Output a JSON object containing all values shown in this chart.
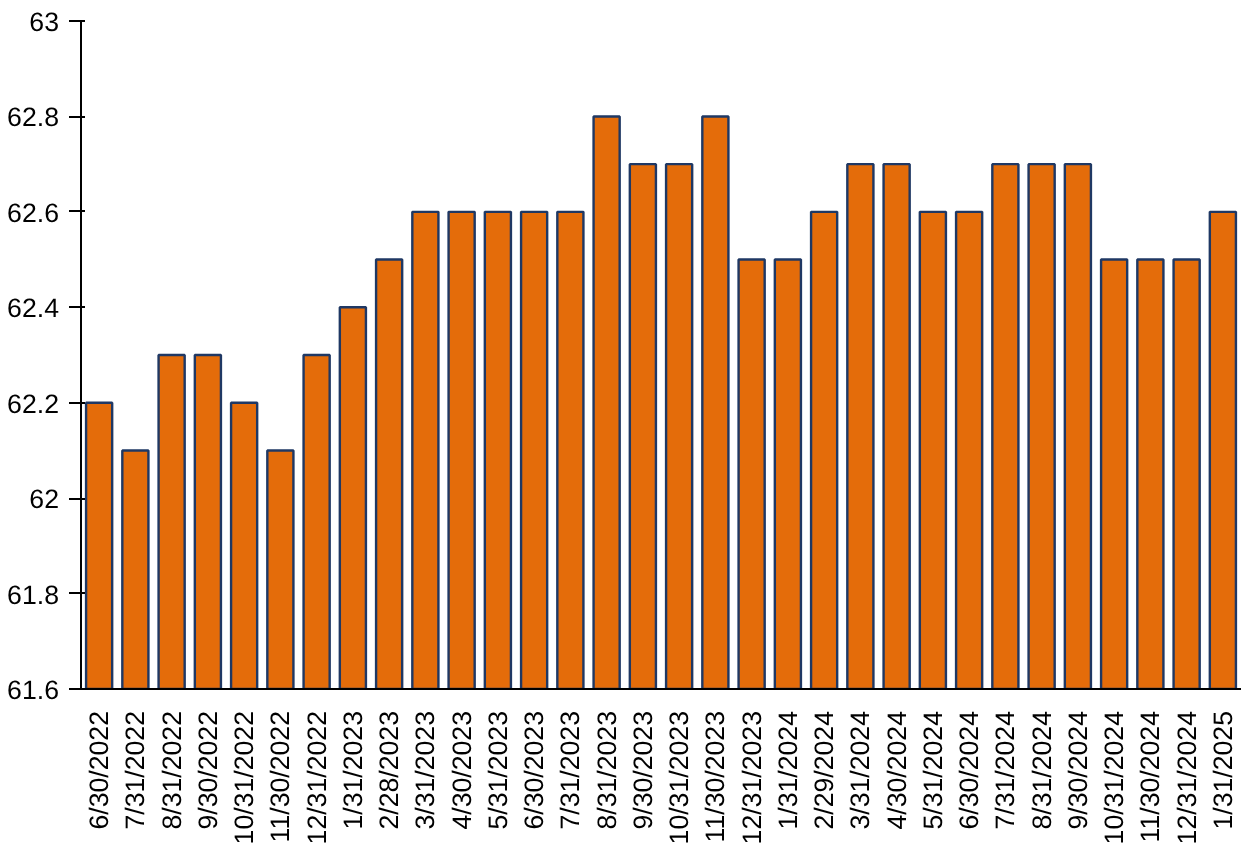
{
  "chart_data": {
    "type": "bar",
    "categories": [
      "6/30/2022",
      "7/31/2022",
      "8/31/2022",
      "9/30/2022",
      "10/31/2022",
      "11/30/2022",
      "12/31/2022",
      "1/31/2023",
      "2/28/2023",
      "3/31/2023",
      "4/30/2023",
      "5/31/2023",
      "6/30/2023",
      "7/31/2023",
      "8/31/2023",
      "9/30/2023",
      "10/31/2023",
      "11/30/2023",
      "12/31/2023",
      "1/31/2024",
      "2/29/2024",
      "3/31/2024",
      "4/30/2024",
      "5/31/2024",
      "6/30/2024",
      "7/31/2024",
      "8/31/2024",
      "9/30/2024",
      "10/31/2024",
      "11/30/2024",
      "12/31/2024",
      "1/31/2025"
    ],
    "values": [
      62.2,
      62.1,
      62.3,
      62.3,
      62.2,
      62.1,
      62.3,
      62.4,
      62.5,
      62.6,
      62.6,
      62.6,
      62.6,
      62.6,
      62.8,
      62.7,
      62.7,
      62.8,
      62.5,
      62.5,
      62.6,
      62.7,
      62.7,
      62.6,
      62.6,
      62.7,
      62.7,
      62.7,
      62.5,
      62.5,
      62.5,
      62.6
    ],
    "color": "#e46c0a",
    "ylim": [
      61.6,
      63
    ],
    "yticks": [
      61.6,
      61.8,
      62,
      62.2,
      62.4,
      62.6,
      62.8,
      63
    ],
    "grid": false
  }
}
